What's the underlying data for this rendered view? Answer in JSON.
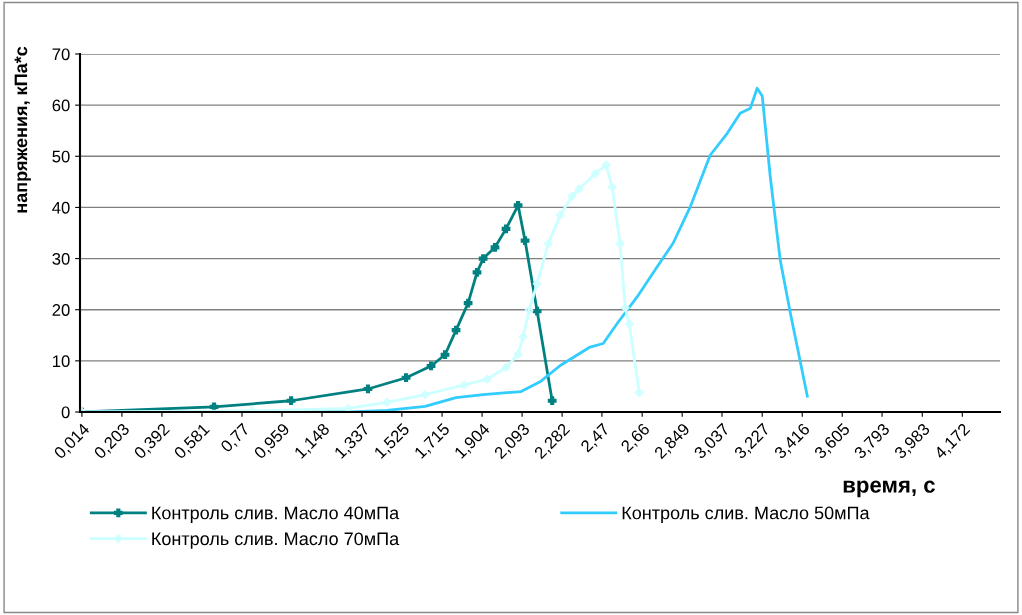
{
  "chart_data": {
    "type": "line",
    "xlabel": "время, с",
    "ylabel": "напряжения, кПа*с",
    "xlim": [
      0.005,
      4.35
    ],
    "ylim": [
      0,
      70
    ],
    "yticks": [
      0,
      10,
      20,
      30,
      40,
      50,
      60,
      70
    ],
    "xticks": [
      {
        "value": 0.014,
        "label": "0,014"
      },
      {
        "value": 0.203,
        "label": "0,203"
      },
      {
        "value": 0.392,
        "label": "0,392"
      },
      {
        "value": 0.581,
        "label": "0,581"
      },
      {
        "value": 0.77,
        "label": "0,77"
      },
      {
        "value": 0.959,
        "label": "0,959"
      },
      {
        "value": 1.148,
        "label": "1,148"
      },
      {
        "value": 1.337,
        "label": "1,337"
      },
      {
        "value": 1.525,
        "label": "1,525"
      },
      {
        "value": 1.715,
        "label": "1,715"
      },
      {
        "value": 1.904,
        "label": "1,904"
      },
      {
        "value": 2.093,
        "label": "2,093"
      },
      {
        "value": 2.282,
        "label": "2,282"
      },
      {
        "value": 2.47,
        "label": "2,47"
      },
      {
        "value": 2.66,
        "label": "2,66"
      },
      {
        "value": 2.849,
        "label": "2,849"
      },
      {
        "value": 3.037,
        "label": "3,037"
      },
      {
        "value": 3.227,
        "label": "3,227"
      },
      {
        "value": 3.416,
        "label": "3,416"
      },
      {
        "value": 3.605,
        "label": "3,605"
      },
      {
        "value": 3.793,
        "label": "3,793"
      },
      {
        "value": 3.983,
        "label": "3,983"
      },
      {
        "value": 4.172,
        "label": "4,172"
      }
    ],
    "grid": "y",
    "legend": "bottom",
    "series": [
      {
        "name": "Контроль слив. Масло 40мПа",
        "color": "#008080",
        "marker": "cross",
        "x": [
          0.014,
          0.638,
          1.002,
          1.365,
          1.545,
          1.663,
          1.729,
          1.781,
          1.838,
          1.88,
          1.909,
          1.965,
          2.017,
          2.074,
          2.107,
          2.164,
          2.235
        ],
        "values": [
          0,
          1.0,
          2.2,
          4.5,
          6.7,
          9.0,
          11.2,
          16,
          21.3,
          27.3,
          30,
          32.2,
          35.8,
          40.4,
          33.5,
          19.7,
          2.2
        ]
      },
      {
        "name": "Контроль слив. Масло 50мПа",
        "color": "#33ccff",
        "x": [
          0.014,
          1.29,
          1.455,
          1.635,
          1.781,
          1.909,
          2.088,
          2.178,
          2.273,
          2.414,
          2.476,
          2.542,
          2.636,
          2.731,
          2.806,
          2.887,
          2.981,
          3.062,
          3.123,
          3.171,
          3.203,
          3.227,
          3.265,
          3.312,
          3.36,
          3.44
        ],
        "values": [
          0,
          0,
          0.3,
          1.1,
          2.8,
          3.4,
          4.0,
          5.9,
          9.1,
          12.7,
          13.4,
          17.3,
          22.5,
          28.4,
          33,
          40.1,
          50.2,
          54.5,
          58.4,
          59.4,
          63.3,
          61.8,
          46,
          29.7,
          19.3,
          3.1
        ]
      },
      {
        "name": "Контроль слив. Масло 70мПа",
        "color": "#ccffff",
        "marker": "diamond",
        "x": [
          0.014,
          0.817,
          1.271,
          1.455,
          1.635,
          1.819,
          1.928,
          2.017,
          2.074,
          2.098,
          2.126,
          2.164,
          2.216,
          2.273,
          2.329,
          2.362,
          2.438,
          2.49,
          2.518,
          2.556,
          2.58,
          2.599,
          2.646
        ],
        "values": [
          0,
          0.2,
          0.7,
          1.9,
          3.4,
          5.3,
          6.4,
          8.7,
          11.3,
          14.7,
          19.9,
          25.1,
          32.9,
          38.5,
          42.2,
          43.6,
          46.6,
          48.3,
          44,
          32.9,
          20.4,
          17.2,
          3.8
        ]
      }
    ]
  }
}
